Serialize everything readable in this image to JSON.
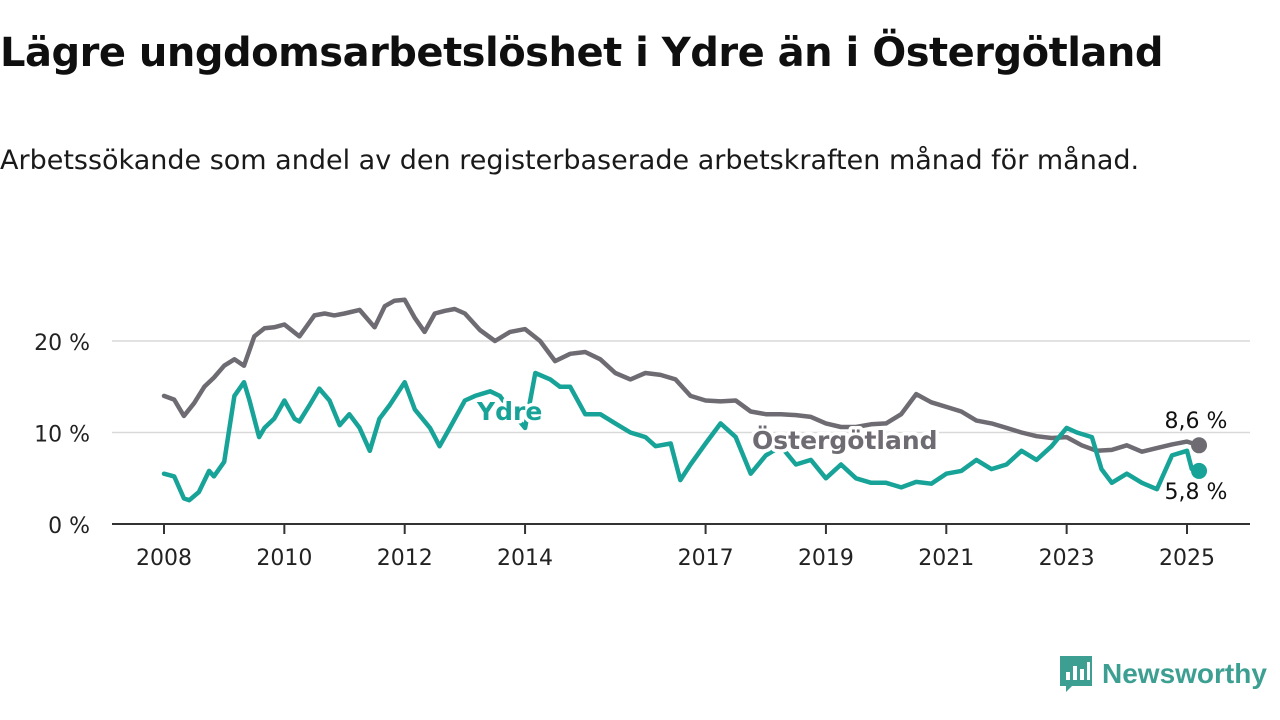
{
  "title": "Lägre ungdomsarbetslöshet i Ydre än i Östergötland",
  "subtitle": "Arbetssökande som andel av den registerbaserade arbetskraften månad för månad.",
  "brand": {
    "name": "Newsworthy",
    "color": "#3c9f92"
  },
  "colors": {
    "ydre": "#17a398",
    "ostergotland": "#6e6c72",
    "grid": "#d9d9d9",
    "axis": "#333333"
  },
  "chart_data": {
    "type": "line",
    "xlim": [
      2008,
      2025.6
    ],
    "ylim": [
      0,
      27
    ],
    "yticks": [
      0,
      10,
      20
    ],
    "ytick_labels": [
      "0 %",
      "10 %",
      "20 %"
    ],
    "xticks": [
      2008,
      2010,
      2012,
      2014,
      2017,
      2019,
      2021,
      2023,
      2025
    ],
    "xtick_labels": [
      "2008",
      "2010",
      "2012",
      "2014",
      "2017",
      "2019",
      "2021",
      "2023",
      "2025"
    ],
    "grid": "horizontal",
    "series": [
      {
        "name": "Östergötland",
        "color": "#6e6c72",
        "last_label": "8,6 %",
        "x": [
          2008.0,
          2008.17,
          2008.33,
          2008.5,
          2008.67,
          2008.83,
          2009.0,
          2009.17,
          2009.33,
          2009.5,
          2009.67,
          2009.83,
          2010.0,
          2010.25,
          2010.5,
          2010.67,
          2010.83,
          2011.0,
          2011.25,
          2011.5,
          2011.67,
          2011.83,
          2012.0,
          2012.17,
          2012.33,
          2012.5,
          2012.67,
          2012.83,
          2013.0,
          2013.25,
          2013.5,
          2013.75,
          2014.0,
          2014.25,
          2014.5,
          2014.75,
          2015.0,
          2015.25,
          2015.5,
          2015.75,
          2016.0,
          2016.25,
          2016.5,
          2016.75,
          2017.0,
          2017.25,
          2017.5,
          2017.75,
          2018.0,
          2018.25,
          2018.5,
          2018.75,
          2019.0,
          2019.25,
          2019.5,
          2019.75,
          2020.0,
          2020.25,
          2020.5,
          2020.75,
          2021.0,
          2021.25,
          2021.5,
          2021.75,
          2022.0,
          2022.25,
          2022.5,
          2022.75,
          2023.0,
          2023.25,
          2023.5,
          2023.75,
          2024.0,
          2024.25,
          2024.5,
          2024.75,
          2025.0,
          2025.2
        ],
        "y": [
          14.0,
          13.6,
          11.8,
          13.2,
          15.0,
          16.0,
          17.3,
          18.0,
          17.3,
          20.5,
          21.4,
          21.5,
          21.8,
          20.5,
          22.8,
          23.0,
          22.8,
          23.0,
          23.4,
          21.5,
          23.8,
          24.4,
          24.5,
          22.5,
          21.0,
          23.0,
          23.3,
          23.5,
          23.0,
          21.2,
          20.0,
          21.0,
          21.3,
          20.0,
          17.8,
          18.6,
          18.8,
          18.0,
          16.5,
          15.8,
          16.5,
          16.3,
          15.8,
          14.0,
          13.5,
          13.4,
          13.5,
          12.3,
          12.0,
          12.0,
          11.9,
          11.7,
          11.0,
          10.6,
          10.6,
          10.9,
          11.0,
          12.0,
          14.2,
          13.3,
          12.8,
          12.3,
          11.3,
          11.0,
          10.5,
          10.0,
          9.6,
          9.4,
          9.5,
          8.6,
          8.0,
          8.1,
          8.6,
          7.9,
          8.3,
          8.7,
          9.0,
          8.6
        ]
      },
      {
        "name": "Ydre",
        "color": "#17a398",
        "last_label": "5,8 %",
        "x": [
          2008.0,
          2008.17,
          2008.33,
          2008.42,
          2008.58,
          2008.75,
          2008.83,
          2009.0,
          2009.17,
          2009.33,
          2009.42,
          2009.58,
          2009.67,
          2009.83,
          2010.0,
          2010.17,
          2010.25,
          2010.42,
          2010.58,
          2010.75,
          2010.92,
          2011.08,
          2011.25,
          2011.42,
          2011.58,
          2011.75,
          2012.0,
          2012.17,
          2012.42,
          2012.58,
          2012.75,
          2013.0,
          2013.17,
          2013.42,
          2013.58,
          2013.75,
          2014.0,
          2014.17,
          2014.42,
          2014.58,
          2014.75,
          2015.0,
          2015.25,
          2015.5,
          2015.75,
          2016.0,
          2016.17,
          2016.42,
          2016.58,
          2016.75,
          2017.0,
          2017.25,
          2017.5,
          2017.75,
          2018.0,
          2018.25,
          2018.5,
          2018.75,
          2019.0,
          2019.25,
          2019.5,
          2019.75,
          2020.0,
          2020.25,
          2020.5,
          2020.75,
          2021.0,
          2021.25,
          2021.5,
          2021.75,
          2022.0,
          2022.25,
          2022.5,
          2022.75,
          2023.0,
          2023.17,
          2023.42,
          2023.58,
          2023.75,
          2024.0,
          2024.25,
          2024.5,
          2024.75,
          2025.0,
          2025.08,
          2025.2
        ],
        "y": [
          5.5,
          5.2,
          2.8,
          2.6,
          3.5,
          5.8,
          5.2,
          6.8,
          14.0,
          15.5,
          13.5,
          9.5,
          10.5,
          11.5,
          13.5,
          11.5,
          11.2,
          13.0,
          14.8,
          13.5,
          10.8,
          12.0,
          10.5,
          8.0,
          11.5,
          13.0,
          15.5,
          12.5,
          10.5,
          8.5,
          10.5,
          13.5,
          14.0,
          14.5,
          14.0,
          12.5,
          10.5,
          16.5,
          15.8,
          15.0,
          15.0,
          12.0,
          12.0,
          11.0,
          10.0,
          9.5,
          8.5,
          8.8,
          4.8,
          6.5,
          8.8,
          11.0,
          9.5,
          5.5,
          7.5,
          8.5,
          6.5,
          7.0,
          5.0,
          6.5,
          5.0,
          4.5,
          4.5,
          4.0,
          4.6,
          4.4,
          5.5,
          5.8,
          7.0,
          6.0,
          6.5,
          8.0,
          7.0,
          8.5,
          10.5,
          10.0,
          9.5,
          6.0,
          4.5,
          5.5,
          4.5,
          3.8,
          7.5,
          8.0,
          6.0,
          5.8
        ]
      }
    ]
  }
}
